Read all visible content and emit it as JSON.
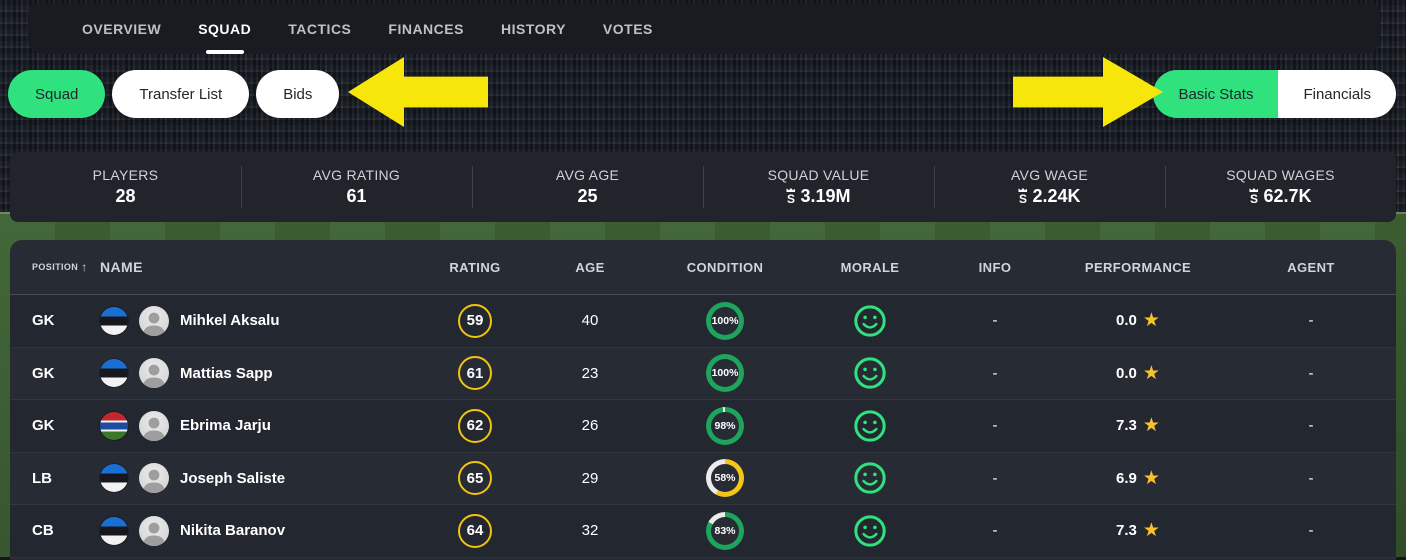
{
  "colors": {
    "accent_green": "#2fe27e",
    "annotation_yellow": "#f7e60a",
    "rating_ring": "#f1c40f",
    "star_yellow": "#fbc02d",
    "condition_green": "#1ea45c",
    "condition_yellow": "#f5c518",
    "condition_track": "#ececec"
  },
  "nav": {
    "tabs": [
      {
        "label": "OVERVIEW",
        "active": false
      },
      {
        "label": "SQUAD",
        "active": true
      },
      {
        "label": "TACTICS",
        "active": false
      },
      {
        "label": "FINANCES",
        "active": false
      },
      {
        "label": "HISTORY",
        "active": false
      },
      {
        "label": "VOTES",
        "active": false
      }
    ]
  },
  "filters": {
    "left_pills": [
      {
        "label": "Squad",
        "active": true
      },
      {
        "label": "Transfer List",
        "active": false
      },
      {
        "label": "Bids",
        "active": false
      }
    ],
    "right_toggle": [
      {
        "label": "Basic Stats",
        "active": true
      },
      {
        "label": "Financials",
        "active": false
      }
    ]
  },
  "currency_symbol": "S",
  "stats": [
    {
      "label": "PLAYERS",
      "value": "28",
      "currency": false
    },
    {
      "label": "AVG RATING",
      "value": "61",
      "currency": false
    },
    {
      "label": "AVG AGE",
      "value": "25",
      "currency": false
    },
    {
      "label": "SQUAD VALUE",
      "value": "3.19M",
      "currency": true
    },
    {
      "label": "AVG WAGE",
      "value": "2.24K",
      "currency": true
    },
    {
      "label": "SQUAD WAGES",
      "value": "62.7K",
      "currency": true
    }
  ],
  "table": {
    "sort_icon": "↑",
    "star_icon": "★",
    "columns": [
      "POSITION",
      "NAME",
      "RATING",
      "AGE",
      "CONDITION",
      "MORALE",
      "INFO",
      "PERFORMANCE",
      "AGENT"
    ],
    "rows": [
      {
        "position": "GK",
        "nationality": "estonia",
        "name": "Mihkel Aksalu",
        "rating": "59",
        "age": "40",
        "condition_pct": 100,
        "condition_label": "100%",
        "condition_color": "green",
        "morale": "happy",
        "info": "-",
        "performance": "0.0",
        "agent": "-"
      },
      {
        "position": "GK",
        "nationality": "estonia",
        "name": "Mattias Sapp",
        "rating": "61",
        "age": "23",
        "condition_pct": 100,
        "condition_label": "100%",
        "condition_color": "green",
        "morale": "happy",
        "info": "-",
        "performance": "0.0",
        "agent": "-"
      },
      {
        "position": "GK",
        "nationality": "gambia",
        "name": "Ebrima Jarju",
        "rating": "62",
        "age": "26",
        "condition_pct": 98,
        "condition_label": "98%",
        "condition_color": "green",
        "morale": "happy",
        "info": "-",
        "performance": "7.3",
        "agent": "-"
      },
      {
        "position": "LB",
        "nationality": "estonia",
        "name": "Joseph Saliste",
        "rating": "65",
        "age": "29",
        "condition_pct": 58,
        "condition_label": "58%",
        "condition_color": "yellow",
        "morale": "happy",
        "info": "-",
        "performance": "6.9",
        "agent": "-"
      },
      {
        "position": "CB",
        "nationality": "estonia",
        "name": "Nikita Baranov",
        "rating": "64",
        "age": "32",
        "condition_pct": 83,
        "condition_label": "83%",
        "condition_color": "green",
        "morale": "happy",
        "info": "-",
        "performance": "7.3",
        "agent": "-"
      }
    ]
  }
}
